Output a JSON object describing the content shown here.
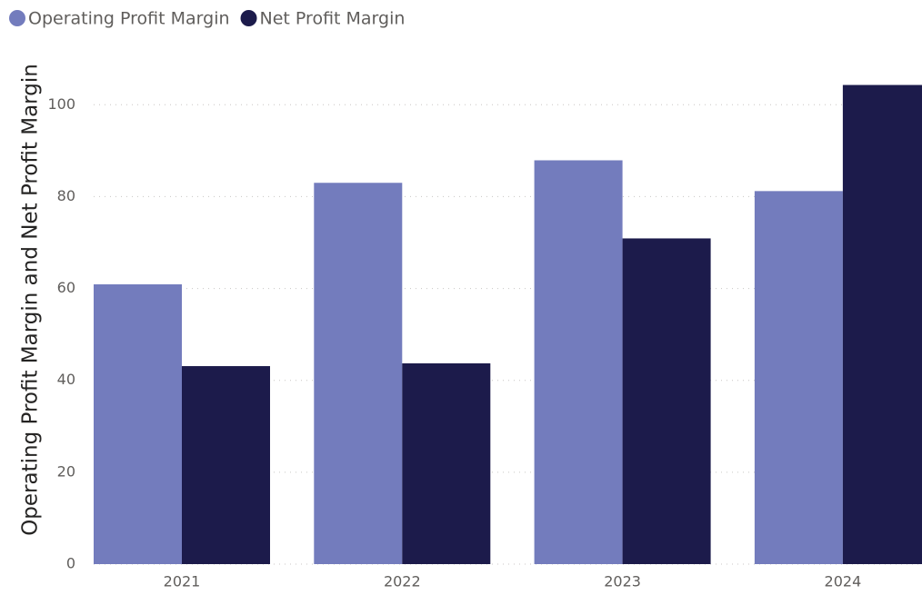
{
  "chart_data": {
    "type": "bar",
    "y_label": "Operating Profit Margin and Net Profit Margin",
    "categories": [
      "2021",
      "2022",
      "2023",
      "2024"
    ],
    "series": [
      {
        "name": "Operating Profit Margin",
        "color": "#737cbd",
        "values": [
          60.9,
          83.0,
          87.9,
          81.2
        ]
      },
      {
        "name": "Net Profit Margin",
        "color": "#1c1b4b",
        "values": [
          43.1,
          43.7,
          70.9,
          104.3
        ]
      }
    ],
    "ylim": [
      0,
      105
    ],
    "yticks": [
      0,
      20,
      40,
      60,
      80,
      100
    ],
    "grid": true,
    "legend": "top-left"
  }
}
